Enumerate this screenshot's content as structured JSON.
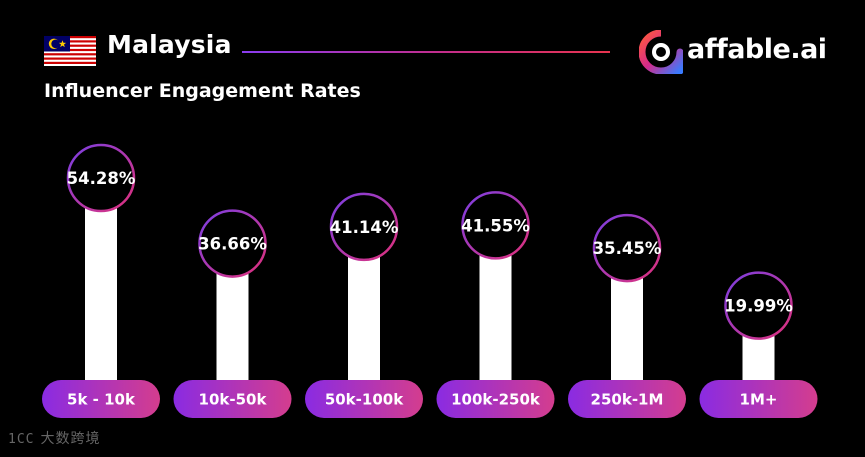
{
  "header": {
    "country": "Malaysia",
    "subtitle": "Influencer Engagement Rates",
    "brand": "affable.ai"
  },
  "watermark": {
    "mark": "1CC",
    "text": "大数跨境"
  },
  "colors": {
    "background": "#000000",
    "bar": "#ffffff",
    "pill_start": "#8a2be2",
    "pill_end": "#d43d8e",
    "ring_start": "#7b3fe4",
    "ring_end": "#e0307a"
  },
  "chart_data": {
    "type": "bar",
    "title": "Influencer Engagement Rates",
    "categories": [
      "5k - 10k",
      "10k-50k",
      "50k-100k",
      "100k-250k",
      "250k-1M",
      "1M+"
    ],
    "values": [
      54.28,
      36.66,
      41.14,
      41.55,
      35.45,
      19.99
    ],
    "labels": [
      "54.28%",
      "36.66%",
      "41.14%",
      "41.55%",
      "35.45%",
      "19.99%"
    ],
    "xlabel": "",
    "ylabel": "",
    "grid": false,
    "legend": "none"
  }
}
